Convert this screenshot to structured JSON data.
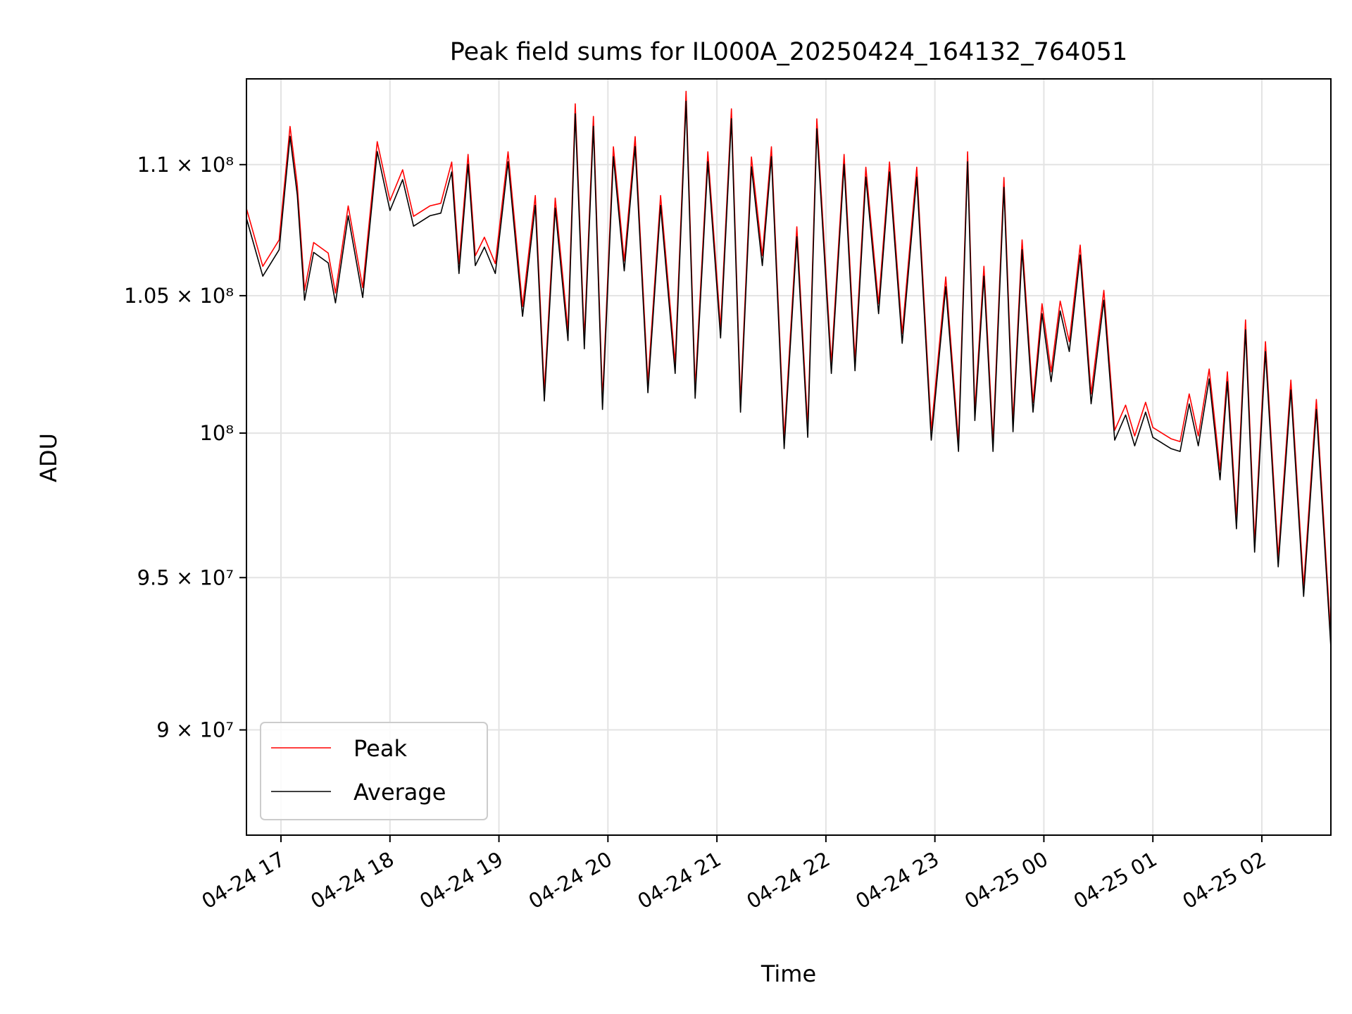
{
  "chart_data": {
    "type": "line",
    "title": "Peak field sums for IL000A_20250424_164132_764051",
    "xlabel": "Time",
    "ylabel": "ADU",
    "y_scale": "log",
    "x_range": [
      "04-24 16:41",
      "04-25 02:38"
    ],
    "ylim": [
      86700000,
      113400000
    ],
    "x_ticks": [
      "04-24 17",
      "04-24 18",
      "04-24 19",
      "04-24 20",
      "04-24 21",
      "04-24 22",
      "04-24 23",
      "04-25 00",
      "04-25 01",
      "04-25 02"
    ],
    "y_ticks": [
      {
        "value": 90000000,
        "label": "9 × 10⁷"
      },
      {
        "value": 95000000,
        "label": "9.5 × 10⁷"
      },
      {
        "value": 100000000,
        "label": "10⁸"
      },
      {
        "value": 105000000,
        "label": "1.05 × 10⁸"
      },
      {
        "value": 110000000,
        "label": "1.1 × 10⁸"
      }
    ],
    "grid": true,
    "legend_position": "lower-left",
    "series": [
      {
        "name": "Peak",
        "color": "#ff0000",
        "x": [
          "04-24 16:41",
          "04-24 16:50",
          "04-24 16:59",
          "04-24 17:05",
          "04-24 17:09",
          "04-24 17:13",
          "04-24 17:18",
          "04-24 17:26",
          "04-24 17:30",
          "04-24 17:37",
          "04-24 17:45",
          "04-24 17:53",
          "04-24 18:00",
          "04-24 18:07",
          "04-24 18:13",
          "04-24 18:22",
          "04-24 18:28",
          "04-24 18:34",
          "04-24 18:38",
          "04-24 18:43",
          "04-24 18:47",
          "04-24 18:52",
          "04-24 18:58",
          "04-24 19:05",
          "04-24 19:13",
          "04-24 19:20",
          "04-24 19:25",
          "04-24 19:31",
          "04-24 19:38",
          "04-24 19:42",
          "04-24 19:47",
          "04-24 19:52",
          "04-24 19:57",
          "04-24 20:03",
          "04-24 20:09",
          "04-24 20:15",
          "04-24 20:22",
          "04-24 20:29",
          "04-24 20:37",
          "04-24 20:43",
          "04-24 20:48",
          "04-24 20:55",
          "04-24 21:02",
          "04-24 21:08",
          "04-24 21:13",
          "04-24 21:19",
          "04-24 21:25",
          "04-24 21:30",
          "04-24 21:37",
          "04-24 21:44",
          "04-24 21:50",
          "04-24 21:55",
          "04-24 22:03",
          "04-24 22:10",
          "04-24 22:16",
          "04-24 22:22",
          "04-24 22:29",
          "04-24 22:35",
          "04-24 22:42",
          "04-24 22:50",
          "04-24 22:58",
          "04-24 23:06",
          "04-24 23:13",
          "04-24 23:18",
          "04-24 23:22",
          "04-24 23:27",
          "04-24 23:32",
          "04-24 23:38",
          "04-24 23:43",
          "04-24 23:48",
          "04-24 23:54",
          "04-24 23:59",
          "04-25 00:04",
          "04-25 00:09",
          "04-25 00:14",
          "04-25 00:20",
          "04-25 00:26",
          "04-25 00:33",
          "04-25 00:39",
          "04-25 00:45",
          "04-25 00:50",
          "04-25 00:56",
          "04-25 01:00",
          "04-25 01:05",
          "04-25 01:10",
          "04-25 01:15",
          "04-25 01:20",
          "04-25 01:25",
          "04-25 01:31",
          "04-25 01:37",
          "04-25 01:41",
          "04-25 01:46",
          "04-25 01:51",
          "04-25 01:56",
          "04-25 02:02",
          "04-25 02:09",
          "04-25 02:16",
          "04-25 02:23",
          "04-25 02:30",
          "04-25 02:38"
        ],
        "y": [
          108300000,
          106100000,
          107100000,
          111500000,
          109200000,
          105200000,
          107000000,
          106600000,
          105100000,
          108400000,
          105300000,
          110900000,
          108600000,
          109800000,
          108000000,
          108400000,
          108500000,
          110100000,
          106200000,
          110400000,
          106500000,
          107200000,
          106200000,
          110500000,
          104600000,
          108800000,
          101500000,
          108700000,
          103700000,
          112400000,
          103400000,
          111900000,
          101200000,
          110700000,
          106300000,
          111100000,
          101800000,
          108800000,
          102500000,
          112900000,
          101600000,
          110500000,
          103800000,
          112200000,
          101100000,
          110300000,
          106500000,
          110700000,
          99800000,
          107600000,
          100200000,
          111800000,
          102500000,
          110400000,
          102600000,
          109900000,
          104700000,
          110100000,
          103600000,
          109900000,
          100100000,
          105700000,
          99700000,
          110500000,
          100800000,
          106100000,
          99700000,
          109500000,
          100400000,
          107100000,
          101100000,
          104700000,
          102200000,
          104800000,
          103300000,
          106900000,
          101400000,
          105200000,
          100100000,
          101000000,
          99900000,
          101100000,
          100200000,
          100000000,
          99800000,
          99700000,
          101400000,
          99900000,
          102300000,
          98700000,
          102200000,
          97000000,
          104100000,
          96200000,
          103300000,
          95700000,
          101900000,
          94700000,
          101200000,
          93000000
        ],
        "note": ""
      },
      {
        "name": "Average",
        "color": "#000000",
        "x": [],
        "y": []
      }
    ]
  }
}
